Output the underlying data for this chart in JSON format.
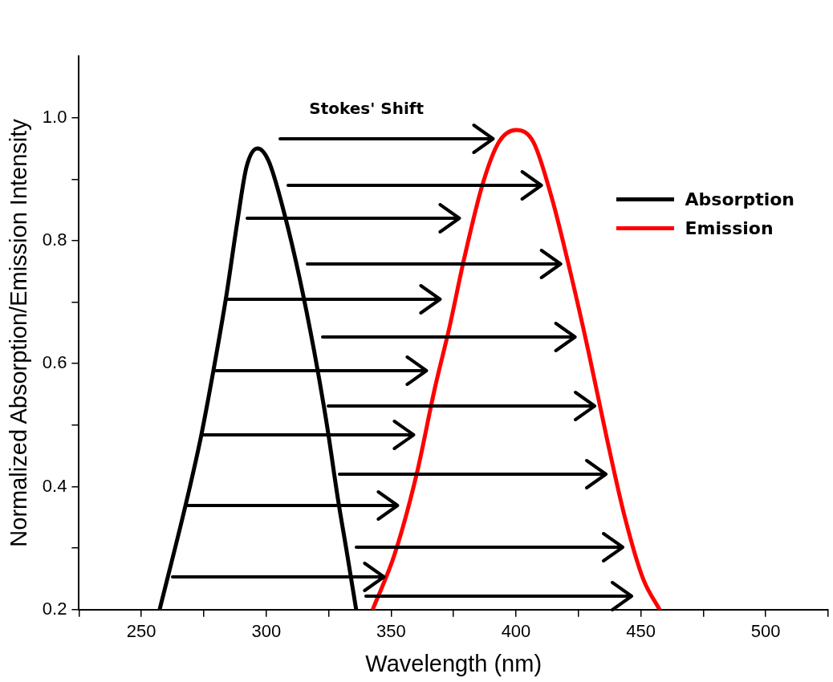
{
  "chart_data": {
    "type": "line",
    "xlabel": "Wavelength (nm)",
    "ylabel": "Normalized Absorption/Emission Intensity",
    "annotations": [
      "Stokes' Shift"
    ],
    "xlim": [
      225,
      525
    ],
    "ylim": [
      0.2,
      1.1
    ],
    "xticks": [
      {
        "value": 225,
        "label": null
      },
      250,
      {
        "value": 275,
        "label": null
      },
      300,
      {
        "value": 325,
        "label": null
      },
      350,
      {
        "value": 375,
        "label": null
      },
      400,
      {
        "value": 425,
        "label": null
      },
      450,
      {
        "value": 475,
        "label": null
      },
      500,
      {
        "value": 525,
        "label": null
      }
    ],
    "yticks": [
      {
        "value": 0.2,
        "label": "0.2"
      },
      {
        "value": 0.3,
        "label": null
      },
      {
        "value": 0.4,
        "label": "0.4"
      },
      {
        "value": 0.5,
        "label": null
      },
      {
        "value": 0.6,
        "label": "0.6"
      },
      {
        "value": 0.7,
        "label": null
      },
      {
        "value": 0.8,
        "label": "0.8"
      },
      {
        "value": 0.9,
        "label": null
      },
      {
        "value": 1.0,
        "label": "1.0"
      }
    ],
    "grid": false,
    "legend": "right",
    "marker": "none",
    "line_style": "solid",
    "series": [
      {
        "name": "Absorption",
        "color": "#000000",
        "x": [
          257.3,
          267.7,
          273.8,
          278.9,
          284,
          288.4,
          292.1,
          296.5,
          300.9,
          307.5,
          313.3,
          319.2,
          324.3,
          328.7,
          332.4,
          336
        ],
        "values": [
          0.2,
          0.37,
          0.48,
          0.59,
          0.71,
          0.83,
          0.92,
          0.95,
          0.93,
          0.84,
          0.74,
          0.62,
          0.5,
          0.38,
          0.29,
          0.2
        ]
      },
      {
        "name": "Emission",
        "color": "#ff0000",
        "x": [
          342.6,
          351.4,
          360.2,
          367.5,
          373.4,
          379.2,
          386.5,
          393.1,
          400.1,
          407,
          414.3,
          421.7,
          429,
          436.3,
          443.6,
          450.9,
          457.5
        ],
        "values": [
          0.2,
          0.29,
          0.42,
          0.56,
          0.66,
          0.77,
          0.89,
          0.96,
          0.98,
          0.96,
          0.87,
          0.75,
          0.62,
          0.48,
          0.35,
          0.25,
          0.2
        ]
      }
    ]
  }
}
